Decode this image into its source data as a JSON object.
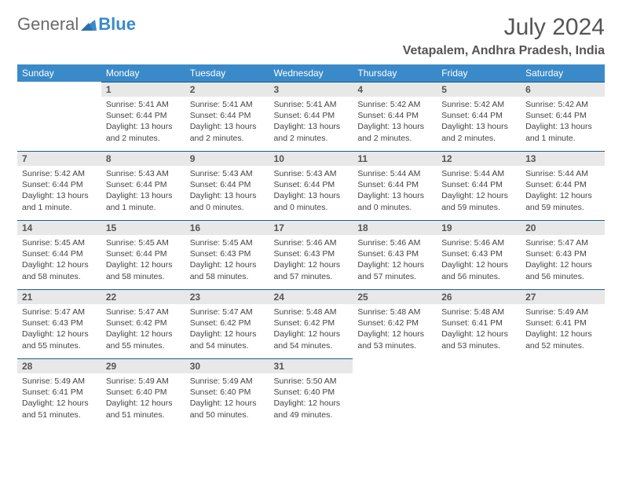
{
  "brand": {
    "part1": "General",
    "part2": "Blue"
  },
  "title": "July 2024",
  "location": "Vetapalem, Andhra Pradesh, India",
  "colors": {
    "header_bg": "#3a8ac9",
    "header_fg": "#ffffff",
    "dayrow_bg": "#e8e8e8",
    "dayrow_border": "#1f5e8c",
    "text": "#444444",
    "title_color": "#555555"
  },
  "day_labels": [
    "Sunday",
    "Monday",
    "Tuesday",
    "Wednesday",
    "Thursday",
    "Friday",
    "Saturday"
  ],
  "weeks": [
    [
      {
        "n": null
      },
      {
        "n": "1",
        "sr": "Sunrise: 5:41 AM",
        "ss": "Sunset: 6:44 PM",
        "dl": "Daylight: 13 hours and 2 minutes."
      },
      {
        "n": "2",
        "sr": "Sunrise: 5:41 AM",
        "ss": "Sunset: 6:44 PM",
        "dl": "Daylight: 13 hours and 2 minutes."
      },
      {
        "n": "3",
        "sr": "Sunrise: 5:41 AM",
        "ss": "Sunset: 6:44 PM",
        "dl": "Daylight: 13 hours and 2 minutes."
      },
      {
        "n": "4",
        "sr": "Sunrise: 5:42 AM",
        "ss": "Sunset: 6:44 PM",
        "dl": "Daylight: 13 hours and 2 minutes."
      },
      {
        "n": "5",
        "sr": "Sunrise: 5:42 AM",
        "ss": "Sunset: 6:44 PM",
        "dl": "Daylight: 13 hours and 2 minutes."
      },
      {
        "n": "6",
        "sr": "Sunrise: 5:42 AM",
        "ss": "Sunset: 6:44 PM",
        "dl": "Daylight: 13 hours and 1 minute."
      }
    ],
    [
      {
        "n": "7",
        "sr": "Sunrise: 5:42 AM",
        "ss": "Sunset: 6:44 PM",
        "dl": "Daylight: 13 hours and 1 minute."
      },
      {
        "n": "8",
        "sr": "Sunrise: 5:43 AM",
        "ss": "Sunset: 6:44 PM",
        "dl": "Daylight: 13 hours and 1 minute."
      },
      {
        "n": "9",
        "sr": "Sunrise: 5:43 AM",
        "ss": "Sunset: 6:44 PM",
        "dl": "Daylight: 13 hours and 0 minutes."
      },
      {
        "n": "10",
        "sr": "Sunrise: 5:43 AM",
        "ss": "Sunset: 6:44 PM",
        "dl": "Daylight: 13 hours and 0 minutes."
      },
      {
        "n": "11",
        "sr": "Sunrise: 5:44 AM",
        "ss": "Sunset: 6:44 PM",
        "dl": "Daylight: 13 hours and 0 minutes."
      },
      {
        "n": "12",
        "sr": "Sunrise: 5:44 AM",
        "ss": "Sunset: 6:44 PM",
        "dl": "Daylight: 12 hours and 59 minutes."
      },
      {
        "n": "13",
        "sr": "Sunrise: 5:44 AM",
        "ss": "Sunset: 6:44 PM",
        "dl": "Daylight: 12 hours and 59 minutes."
      }
    ],
    [
      {
        "n": "14",
        "sr": "Sunrise: 5:45 AM",
        "ss": "Sunset: 6:44 PM",
        "dl": "Daylight: 12 hours and 58 minutes."
      },
      {
        "n": "15",
        "sr": "Sunrise: 5:45 AM",
        "ss": "Sunset: 6:44 PM",
        "dl": "Daylight: 12 hours and 58 minutes."
      },
      {
        "n": "16",
        "sr": "Sunrise: 5:45 AM",
        "ss": "Sunset: 6:43 PM",
        "dl": "Daylight: 12 hours and 58 minutes."
      },
      {
        "n": "17",
        "sr": "Sunrise: 5:46 AM",
        "ss": "Sunset: 6:43 PM",
        "dl": "Daylight: 12 hours and 57 minutes."
      },
      {
        "n": "18",
        "sr": "Sunrise: 5:46 AM",
        "ss": "Sunset: 6:43 PM",
        "dl": "Daylight: 12 hours and 57 minutes."
      },
      {
        "n": "19",
        "sr": "Sunrise: 5:46 AM",
        "ss": "Sunset: 6:43 PM",
        "dl": "Daylight: 12 hours and 56 minutes."
      },
      {
        "n": "20",
        "sr": "Sunrise: 5:47 AM",
        "ss": "Sunset: 6:43 PM",
        "dl": "Daylight: 12 hours and 56 minutes."
      }
    ],
    [
      {
        "n": "21",
        "sr": "Sunrise: 5:47 AM",
        "ss": "Sunset: 6:43 PM",
        "dl": "Daylight: 12 hours and 55 minutes."
      },
      {
        "n": "22",
        "sr": "Sunrise: 5:47 AM",
        "ss": "Sunset: 6:42 PM",
        "dl": "Daylight: 12 hours and 55 minutes."
      },
      {
        "n": "23",
        "sr": "Sunrise: 5:47 AM",
        "ss": "Sunset: 6:42 PM",
        "dl": "Daylight: 12 hours and 54 minutes."
      },
      {
        "n": "24",
        "sr": "Sunrise: 5:48 AM",
        "ss": "Sunset: 6:42 PM",
        "dl": "Daylight: 12 hours and 54 minutes."
      },
      {
        "n": "25",
        "sr": "Sunrise: 5:48 AM",
        "ss": "Sunset: 6:42 PM",
        "dl": "Daylight: 12 hours and 53 minutes."
      },
      {
        "n": "26",
        "sr": "Sunrise: 5:48 AM",
        "ss": "Sunset: 6:41 PM",
        "dl": "Daylight: 12 hours and 53 minutes."
      },
      {
        "n": "27",
        "sr": "Sunrise: 5:49 AM",
        "ss": "Sunset: 6:41 PM",
        "dl": "Daylight: 12 hours and 52 minutes."
      }
    ],
    [
      {
        "n": "28",
        "sr": "Sunrise: 5:49 AM",
        "ss": "Sunset: 6:41 PM",
        "dl": "Daylight: 12 hours and 51 minutes."
      },
      {
        "n": "29",
        "sr": "Sunrise: 5:49 AM",
        "ss": "Sunset: 6:40 PM",
        "dl": "Daylight: 12 hours and 51 minutes."
      },
      {
        "n": "30",
        "sr": "Sunrise: 5:49 AM",
        "ss": "Sunset: 6:40 PM",
        "dl": "Daylight: 12 hours and 50 minutes."
      },
      {
        "n": "31",
        "sr": "Sunrise: 5:50 AM",
        "ss": "Sunset: 6:40 PM",
        "dl": "Daylight: 12 hours and 49 minutes."
      },
      {
        "n": null
      },
      {
        "n": null
      },
      {
        "n": null
      }
    ]
  ]
}
